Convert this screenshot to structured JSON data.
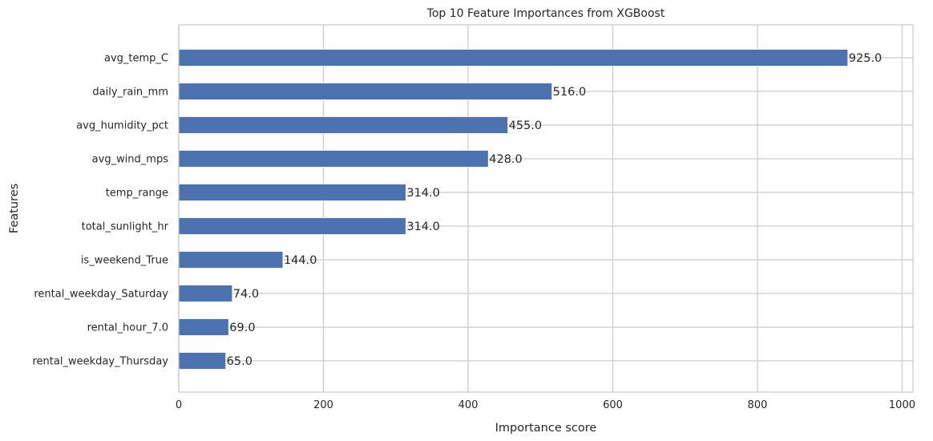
{
  "chart_data": {
    "type": "bar",
    "orientation": "horizontal",
    "title": "Top 10 Feature Importances from XGBoost",
    "xlabel": "Importance score",
    "ylabel": "Features",
    "xlim": [
      0,
      1015
    ],
    "xticks": [
      0,
      200,
      400,
      600,
      800,
      1000
    ],
    "xtick_labels": [
      "0",
      "200",
      "400",
      "600",
      "800",
      "1000"
    ],
    "grid": true,
    "bar_color": "#4c72b0",
    "categories": [
      "avg_temp_C",
      "daily_rain_mm",
      "avg_humidity_pct",
      "avg_wind_mps",
      "temp_range",
      "total_sunlight_hr",
      "is_weekend_True",
      "rental_weekday_Saturday",
      "rental_hour_7.0",
      "rental_weekday_Thursday"
    ],
    "values": [
      925.0,
      516.0,
      455.0,
      428.0,
      314.0,
      314.0,
      144.0,
      74.0,
      69.0,
      65.0
    ],
    "value_labels": [
      "925.0",
      "516.0",
      "455.0",
      "428.0",
      "314.0",
      "314.0",
      "144.0",
      "74.0",
      "69.0",
      "65.0"
    ]
  }
}
